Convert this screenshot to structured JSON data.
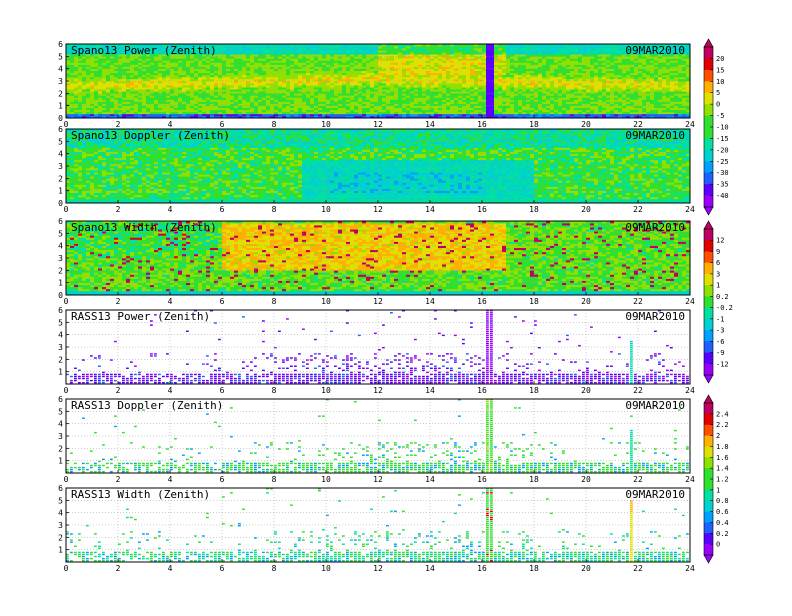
{
  "chart_data": [
    {
      "type": "heatmap",
      "title": "Spano13 Power (Zenith)",
      "date": "09MAR2010",
      "x_ticks": [
        0,
        2,
        4,
        6,
        8,
        10,
        12,
        14,
        16,
        18,
        20,
        22,
        24
      ],
      "y_ticks": [
        0,
        1,
        2,
        3,
        4,
        5,
        6
      ],
      "xlim": [
        0,
        24
      ],
      "ylim": [
        0,
        6
      ],
      "colorbar_group": 0,
      "style": "power"
    },
    {
      "type": "heatmap",
      "title": "Spano13 Doppler (Zenith)",
      "date": "09MAR2010",
      "x_ticks": [
        0,
        2,
        4,
        6,
        8,
        10,
        12,
        14,
        16,
        18,
        20,
        22,
        24
      ],
      "y_ticks": [
        0,
        1,
        2,
        3,
        4,
        5,
        6
      ],
      "xlim": [
        0,
        24
      ],
      "ylim": [
        0,
        6
      ],
      "colorbar_group": 0,
      "style": "doppler"
    },
    {
      "type": "heatmap",
      "title": "Spano13 Width (Zenith)",
      "date": "09MAR2010",
      "x_ticks": [
        0,
        2,
        4,
        6,
        8,
        10,
        12,
        14,
        16,
        18,
        20,
        22,
        24
      ],
      "y_ticks": [
        0,
        1,
        2,
        3,
        4,
        5,
        6
      ],
      "xlim": [
        0,
        24
      ],
      "ylim": [
        0,
        6
      ],
      "colorbar_group": 1,
      "style": "width"
    },
    {
      "type": "heatmap",
      "title": "RASS13 Power (Zenith)",
      "date": "09MAR2010",
      "x_ticks": [
        0,
        2,
        4,
        6,
        8,
        10,
        12,
        14,
        16,
        18,
        20,
        22,
        24
      ],
      "y_ticks": [
        1,
        2,
        3,
        4,
        5,
        6
      ],
      "xlim": [
        0,
        24
      ],
      "ylim": [
        0,
        6
      ],
      "colorbar_group": 1,
      "style": "rasspower"
    },
    {
      "type": "heatmap",
      "title": "RASS13 Doppler (Zenith)",
      "date": "09MAR2010",
      "x_ticks": [
        0,
        2,
        4,
        6,
        8,
        10,
        12,
        14,
        16,
        18,
        20,
        22,
        24
      ],
      "y_ticks": [
        1,
        2,
        3,
        4,
        5,
        6
      ],
      "xlim": [
        0,
        24
      ],
      "ylim": [
        0,
        6
      ],
      "colorbar_group": 2,
      "style": "rassdoppler"
    },
    {
      "type": "heatmap",
      "title": "RASS13 Width (Zenith)",
      "date": "09MAR2010",
      "x_ticks": [
        0,
        2,
        4,
        6,
        8,
        10,
        12,
        14,
        16,
        18,
        20,
        22,
        24
      ],
      "y_ticks": [
        1,
        2,
        3,
        4,
        5,
        6
      ],
      "xlim": [
        0,
        24
      ],
      "ylim": [
        0,
        6
      ],
      "colorbar_group": 2,
      "style": "rasswidth"
    }
  ],
  "colorbars": [
    {
      "labels": [
        "20",
        "15",
        "10",
        "5",
        "0",
        "-5",
        "-10",
        "-15",
        "-20",
        "-25",
        "-30",
        "-35",
        "-40"
      ]
    },
    {
      "labels": [
        "12",
        "9",
        "6",
        "3",
        "1",
        "0.2",
        "-0.2",
        "-1",
        "-3",
        "-6",
        "-9",
        "-12"
      ]
    },
    {
      "labels": [
        "2.4",
        "2.2",
        "2",
        "1.8",
        "1.6",
        "1.4",
        "1.2",
        "1",
        "0.8",
        "0.6",
        "0.4",
        "0.2",
        "0"
      ]
    }
  ],
  "colors": {
    "scale": [
      "#9b00ff",
      "#5a00ff",
      "#2060ff",
      "#00a0ff",
      "#00d0d0",
      "#00e0a0",
      "#30e030",
      "#90e000",
      "#e0e000",
      "#ffb000",
      "#ff5000",
      "#e00000",
      "#c00060"
    ]
  }
}
